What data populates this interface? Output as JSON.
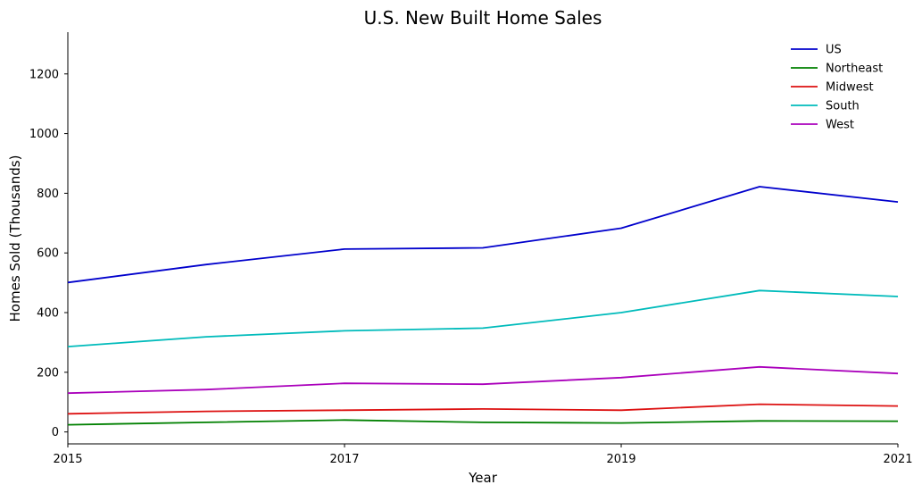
{
  "chart_data": {
    "type": "line",
    "title": "U.S. New Built Home Sales",
    "xlabel": "Year",
    "ylabel": "Homes Sold (Thousands)",
    "x": [
      2015,
      2016,
      2017,
      2018,
      2019,
      2020,
      2021
    ],
    "xlim": [
      2015,
      2021
    ],
    "ylim": [
      -40,
      1340
    ],
    "xticks": [
      2015,
      2017,
      2019,
      2021
    ],
    "yticks": [
      0,
      200,
      400,
      600,
      800,
      1000,
      1200
    ],
    "grid": false,
    "legend_position": "top-right",
    "series": [
      {
        "name": "US",
        "color": "#0000cc",
        "values": [
          501,
          561,
          613,
          617,
          683,
          822,
          771
        ]
      },
      {
        "name": "Northeast",
        "color": "#008000",
        "values": [
          24,
          32,
          40,
          32,
          30,
          37,
          36
        ]
      },
      {
        "name": "Midwest",
        "color": "#dd1111",
        "values": [
          61,
          69,
          73,
          77,
          73,
          93,
          87
        ]
      },
      {
        "name": "South",
        "color": "#00bbbb",
        "values": [
          286,
          319,
          339,
          348,
          400,
          474,
          454
        ]
      },
      {
        "name": "West",
        "color": "#aa00bb",
        "values": [
          130,
          142,
          163,
          160,
          182,
          218,
          196
        ]
      }
    ]
  }
}
